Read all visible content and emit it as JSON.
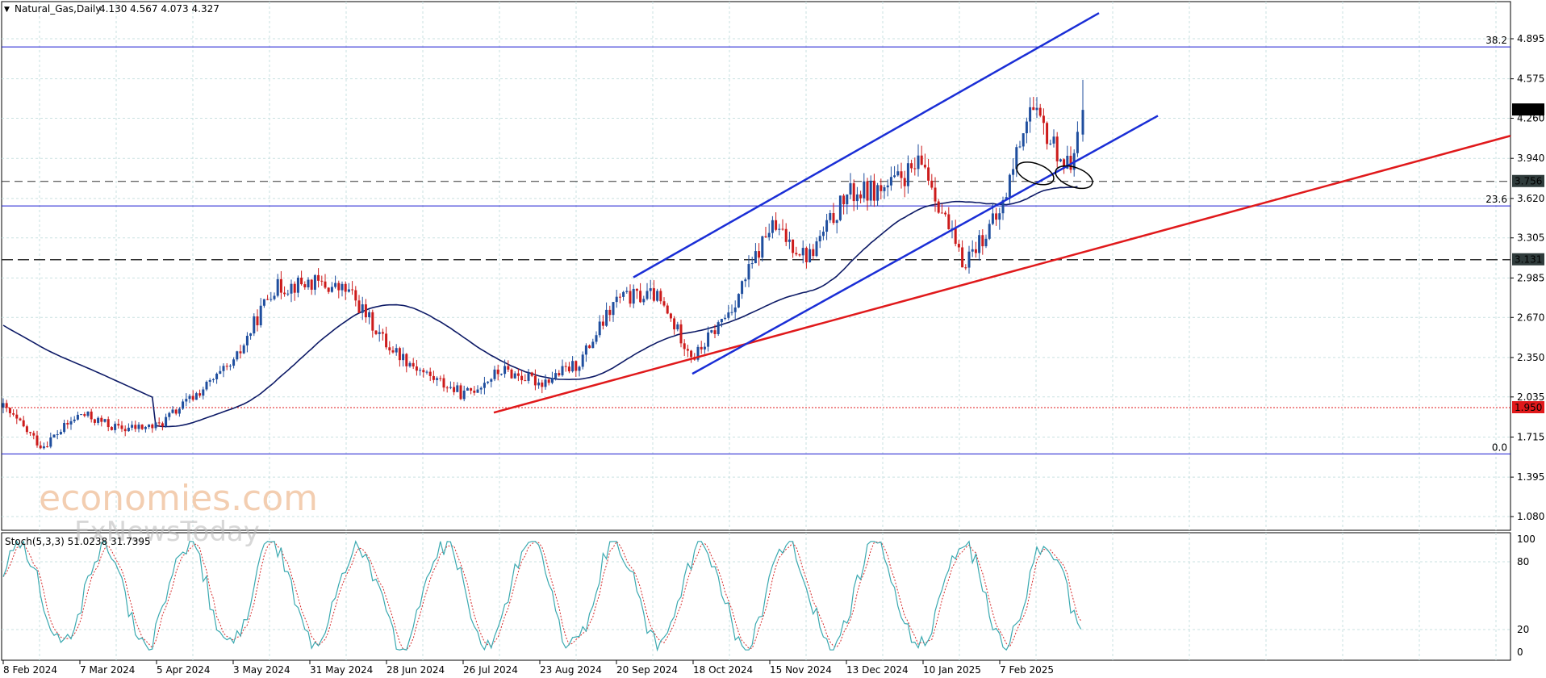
{
  "header": {
    "symbol": "Natural_Gas,Daily",
    "ohlc": "4.130 4.567 4.073 4.327"
  },
  "watermark": {
    "line1": "economies.com",
    "line2": "FxNewsToday"
  },
  "colors": {
    "bull": "#1f4e9e",
    "bear": "#cc1b1b",
    "ma": "#0d1a66",
    "channel": "#1a2ed6",
    "support": "#e0191b",
    "fib": "#1a1ad0",
    "grid": "#c9e1e1",
    "stoch_k": "#3aa9b0",
    "stoch_d": "#d62b2b"
  },
  "price_axis": {
    "ticks": [
      "4.895",
      "4.575",
      "4.260",
      "3.940",
      "3.620",
      "3.305",
      "2.985",
      "2.670",
      "2.350",
      "2.035",
      "1.715",
      "1.395",
      "1.080"
    ]
  },
  "date_axis": {
    "labels": [
      "8 Feb 2024",
      "7 Mar 2024",
      "5 Apr 2024",
      "3 May 2024",
      "31 May 2024",
      "28 Jun 2024",
      "26 Jul 2024",
      "23 Aug 2024",
      "20 Sep 2024",
      "18 Oct 2024",
      "15 Nov 2024",
      "13 Dec 2024",
      "10 Jan 2025",
      "7 Feb 2025"
    ]
  },
  "levels": {
    "fib_382": {
      "label": "38.2",
      "value": 4.83
    },
    "fib_236": {
      "label": "23.6",
      "value": 3.56
    },
    "fib_0": {
      "label": "0.0",
      "value": 1.58
    },
    "resistance_dash_1": {
      "label": "3.756",
      "value": 3.756
    },
    "resistance_dash_2": {
      "label": "3.131",
      "value": 3.131
    },
    "red_dotted": {
      "label": "1.950",
      "value": 1.95
    },
    "current": {
      "label": "4.327",
      "value": 4.327
    }
  },
  "stoch": {
    "label": "Stoch(5,3,3) 51.0238 31.7395",
    "ticks": [
      "100",
      "80",
      "20",
      "0"
    ]
  },
  "chart_data": {
    "type": "candlestick",
    "symbol": "Natural_Gas",
    "timeframe": "Daily",
    "ylim": [
      0.9,
      5.3
    ],
    "close_series": [
      {
        "t": "8 Feb 2024",
        "close": 1.95
      },
      {
        "t": "22 Feb 2024",
        "close": 1.64
      },
      {
        "t": "7 Mar 2024",
        "close": 1.9
      },
      {
        "t": "21 Mar 2024",
        "close": 1.78
      },
      {
        "t": "5 Apr 2024",
        "close": 1.8
      },
      {
        "t": "19 Apr 2024",
        "close": 2.05
      },
      {
        "t": "3 May 2024",
        "close": 2.3
      },
      {
        "t": "17 May 2024",
        "close": 2.9
      },
      {
        "t": "31 May 2024",
        "close": 2.95
      },
      {
        "t": "14 Jun 2024",
        "close": 2.88
      },
      {
        "t": "28 Jun 2024",
        "close": 2.45
      },
      {
        "t": "12 Jul 2024",
        "close": 2.22
      },
      {
        "t": "26 Jul 2024",
        "close": 2.05
      },
      {
        "t": "9 Aug 2024",
        "close": 2.25
      },
      {
        "t": "23 Aug 2024",
        "close": 2.15
      },
      {
        "t": "6 Sep 2024",
        "close": 2.3
      },
      {
        "t": "20 Sep 2024",
        "close": 2.82
      },
      {
        "t": "4 Oct 2024",
        "close": 2.85
      },
      {
        "t": "18 Oct 2024",
        "close": 2.35
      },
      {
        "t": "1 Nov 2024",
        "close": 2.75
      },
      {
        "t": "15 Nov 2024",
        "close": 3.4
      },
      {
        "t": "29 Nov 2024",
        "close": 3.15
      },
      {
        "t": "13 Dec 2024",
        "close": 3.65
      },
      {
        "t": "27 Dec 2024",
        "close": 3.7
      },
      {
        "t": "10 Jan 2025",
        "close": 3.9
      },
      {
        "t": "24 Jan 2025",
        "close": 3.1
      },
      {
        "t": "7 Feb 2025",
        "close": 3.5
      },
      {
        "t": "14 Feb 2025",
        "close": 4.35
      },
      {
        "t": "21 Feb 2025",
        "close": 4.05
      },
      {
        "t": "28 Feb 2025",
        "close": 3.85
      },
      {
        "t": "4 Mar 2025",
        "close": 4.327
      }
    ],
    "last_bar": {
      "open": 4.13,
      "high": 4.567,
      "low": 4.073,
      "close": 4.327
    },
    "indicators": [
      "moving average",
      "Stoch(5,3,3)"
    ],
    "grid": true
  }
}
